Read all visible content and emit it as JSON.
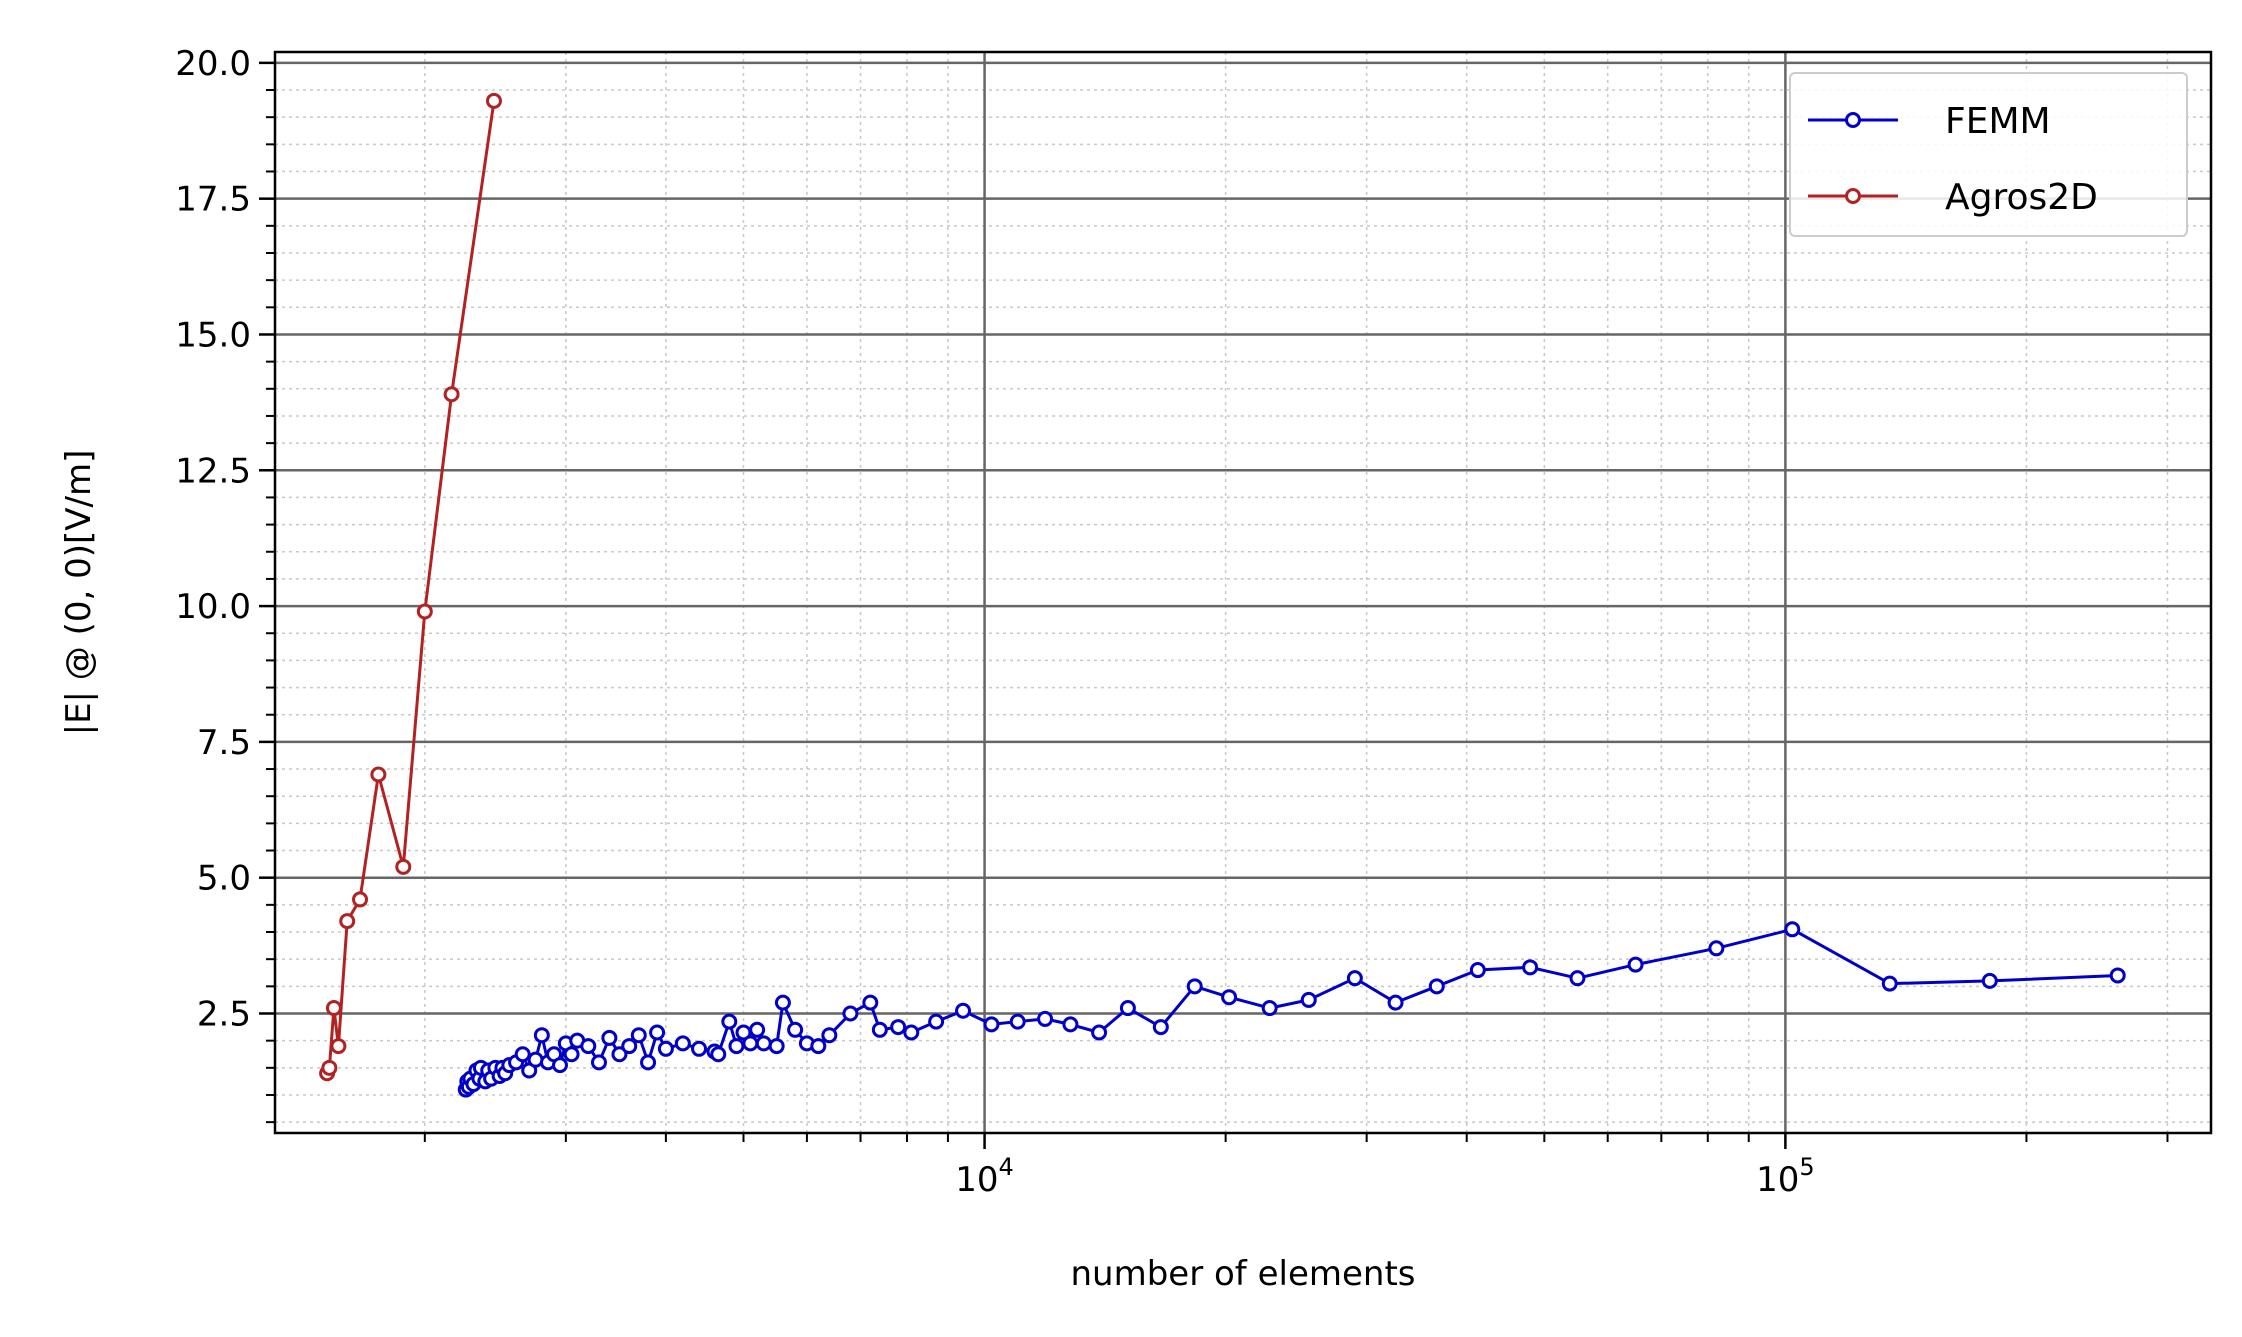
{
  "chart_data": {
    "type": "line",
    "title": "",
    "xlabel": "number of elements",
    "ylabel": "|E| @ (0, 0)[V/m]",
    "xscale": "log",
    "xlim": [
      1300,
      340000
    ],
    "ylim": [
      0.3,
      20.2
    ],
    "x_ticks": [
      {
        "value": 10000,
        "base": "10",
        "exp": "4"
      },
      {
        "value": 100000,
        "base": "10",
        "exp": "5"
      }
    ],
    "y_ticks": [
      "2.5",
      "5.0",
      "7.5",
      "10.0",
      "12.5",
      "15.0",
      "17.5",
      "20.0"
    ],
    "grid": {
      "major": true,
      "minor": true
    },
    "legend": {
      "position": "top-right"
    },
    "series": [
      {
        "name": "FEMM",
        "color": "#0000c8",
        "x": [
          2250,
          2260,
          2270,
          2280,
          2300,
          2320,
          2340,
          2350,
          2380,
          2400,
          2420,
          2450,
          2480,
          2500,
          2520,
          2550,
          2600,
          2650,
          2700,
          2750,
          2800,
          2850,
          2900,
          2950,
          3000,
          3050,
          3100,
          3200,
          3300,
          3400,
          3500,
          3600,
          3700,
          3800,
          3900,
          4000,
          4200,
          4400,
          4600,
          4650,
          4800,
          4900,
          5000,
          5100,
          5200,
          5300,
          5500,
          5600,
          5800,
          6000,
          6200,
          6400,
          6800,
          7200,
          7400,
          7800,
          8100,
          8700,
          9400,
          10200,
          11000,
          11900,
          12800,
          13900,
          15100,
          16600,
          18300,
          20200,
          22700,
          25400,
          29000,
          32600,
          36700,
          41300,
          48000,
          55000,
          65000,
          82000,
          102000,
          135000,
          180000,
          260000
        ],
        "y": [
          1.1,
          1.25,
          1.15,
          1.3,
          1.2,
          1.45,
          1.3,
          1.5,
          1.25,
          1.45,
          1.3,
          1.5,
          1.35,
          1.5,
          1.4,
          1.55,
          1.6,
          1.75,
          1.45,
          1.65,
          2.1,
          1.6,
          1.75,
          1.55,
          1.95,
          1.75,
          2.0,
          1.9,
          1.6,
          2.05,
          1.75,
          1.9,
          2.1,
          1.6,
          2.15,
          1.85,
          1.95,
          1.85,
          1.8,
          1.75,
          2.35,
          1.9,
          2.15,
          1.95,
          2.2,
          1.95,
          1.9,
          2.7,
          2.2,
          1.95,
          1.9,
          2.1,
          2.5,
          2.7,
          2.2,
          2.25,
          2.15,
          2.35,
          2.55,
          2.3,
          2.35,
          2.4,
          2.3,
          2.15,
          2.6,
          2.25,
          3.0,
          2.8,
          2.6,
          2.75,
          3.15,
          2.7,
          3.0,
          3.3,
          3.35,
          3.15,
          3.4,
          3.7,
          4.05,
          3.05,
          3.1,
          3.2
        ]
      },
      {
        "name": "Agros2D",
        "color": "#b22222",
        "x": [
          1510,
          1520,
          1540,
          1560,
          1600,
          1660,
          1750,
          1880,
          2000,
          2160,
          2440
        ],
        "y": [
          1.4,
          1.5,
          2.6,
          1.9,
          4.2,
          4.6,
          6.9,
          5.2,
          9.9,
          13.9,
          19.3
        ]
      }
    ]
  }
}
